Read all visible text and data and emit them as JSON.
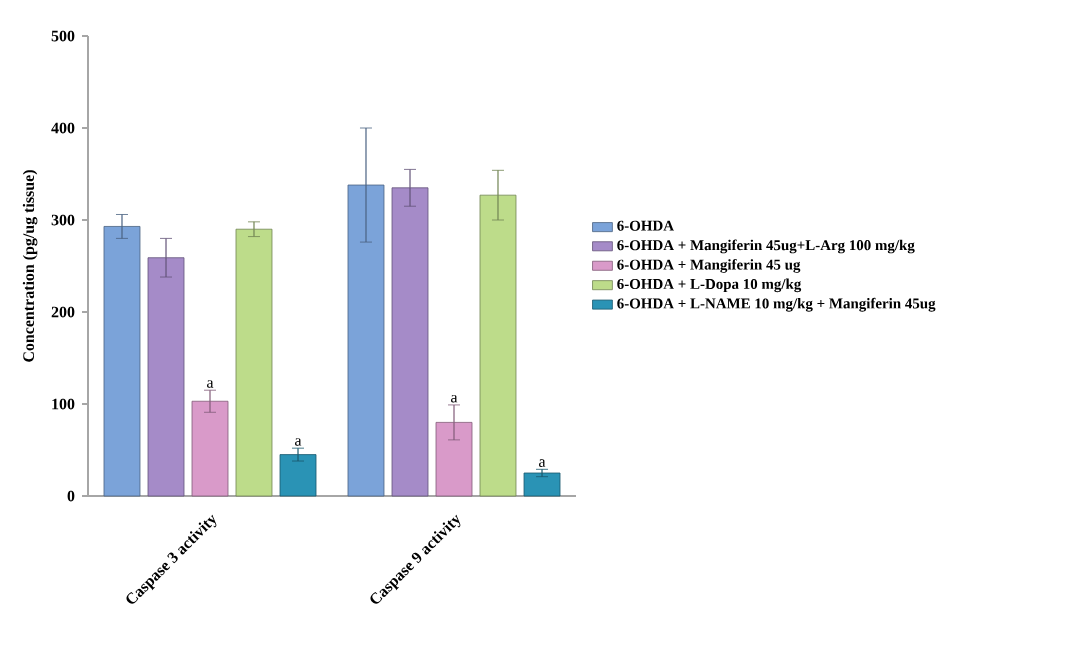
{
  "chart_data": {
    "type": "bar",
    "ylabel": "Concentration (pg/ug tissue)",
    "categories": [
      "Caspase 3 activity",
      "Caspase 9 activity"
    ],
    "series": [
      {
        "name": "6-OHDA",
        "color": "#7ba3d9",
        "values": [
          293,
          338
        ],
        "errors": [
          13,
          62
        ]
      },
      {
        "name": "6-OHDA + Mangiferin 45ug+L-Arg 100 mg/kg",
        "color": "#a58bc8",
        "values": [
          259,
          335
        ],
        "errors": [
          21,
          20
        ]
      },
      {
        "name": "6-OHDA + Mangiferin 45 ug",
        "color": "#d99ac9",
        "values": [
          103,
          80
        ],
        "errors": [
          12,
          19
        ],
        "value_labels": [
          "a",
          "a"
        ]
      },
      {
        "name": "6-OHDA + L-Dopa 10 mg/kg",
        "color": "#bddc8a",
        "values": [
          290,
          327
        ],
        "errors": [
          8,
          27
        ]
      },
      {
        "name": "6-OHDA + L-NAME 10 mg/kg + Mangiferin 45ug",
        "color": "#2a93b5",
        "values": [
          45,
          25
        ],
        "errors": [
          7,
          4
        ],
        "value_labels": [
          "a",
          "a"
        ]
      }
    ],
    "ylim": [
      0,
      500
    ],
    "yticks": [
      0,
      100,
      200,
      300,
      400,
      500
    ],
    "grid": false,
    "legend": "right"
  }
}
